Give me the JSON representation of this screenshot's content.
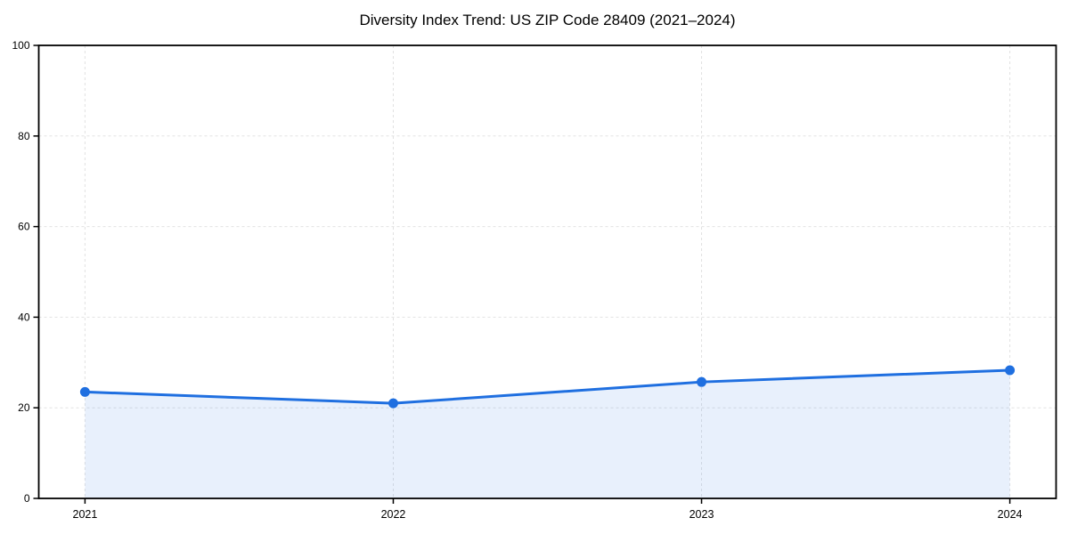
{
  "figure": {
    "background": "#ffffff"
  },
  "chart_data": {
    "type": "area",
    "title": "Diversity Index Trend: US ZIP Code 28409 (2021–2024)",
    "x": [
      2021,
      2022,
      2023,
      2024
    ],
    "xticks": [
      "2021",
      "2022",
      "2023",
      "2024"
    ],
    "yticks": [
      0,
      20,
      40,
      60,
      80,
      100
    ],
    "ylim": [
      0,
      100
    ],
    "series": [
      {
        "name": "Diversity Index",
        "values": [
          23.5,
          21.0,
          25.7,
          28.3
        ]
      }
    ],
    "xlabel": "",
    "ylabel": "",
    "grid": "dashed-both-axes",
    "legend": "none",
    "colors": {
      "line": "#1f6fe0",
      "marker": "#1f6fe0",
      "area_fill": "rgba(31,111,224,0.10)",
      "grid": "#e2e2e2",
      "axis": "#000000",
      "tick_label": "#000000"
    }
  }
}
